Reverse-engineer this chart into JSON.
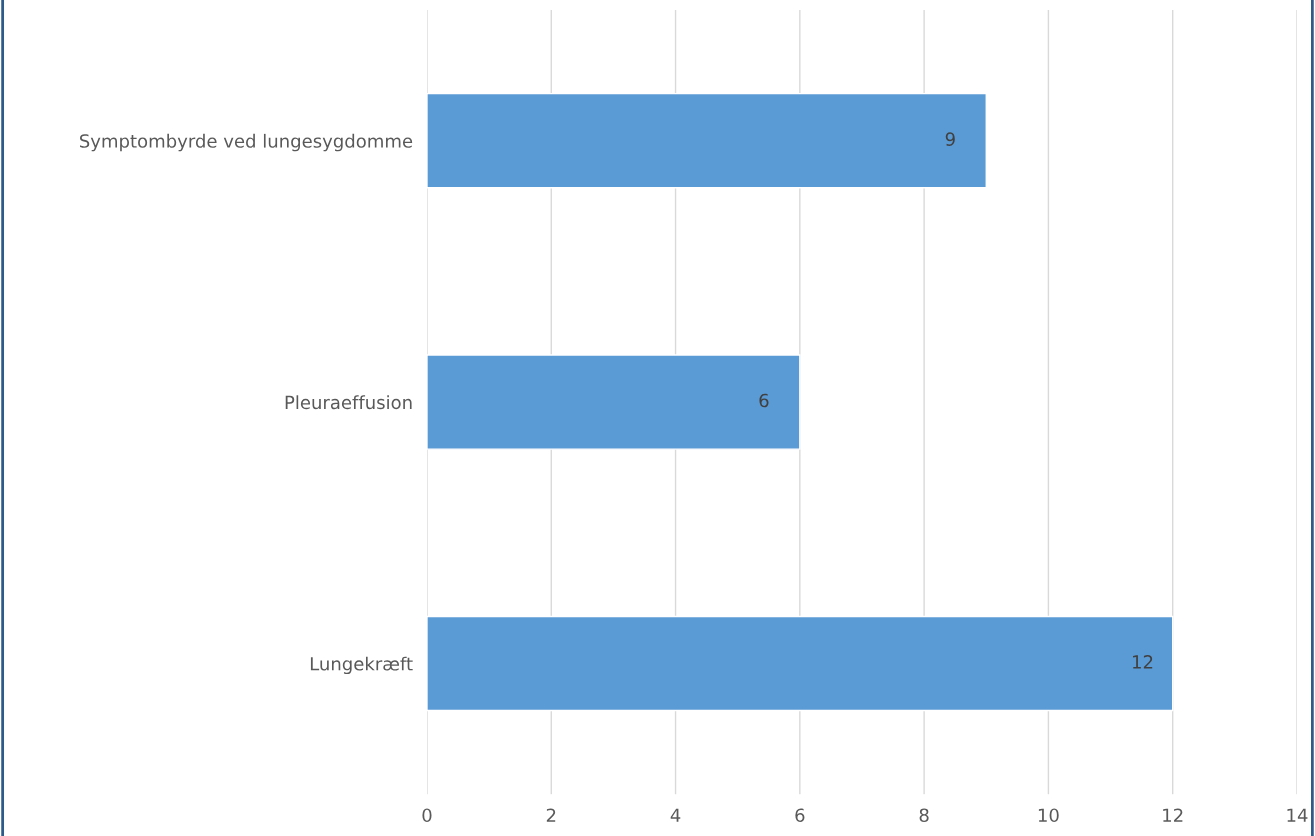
{
  "chart_data": {
    "type": "bar",
    "orientation": "horizontal",
    "categories": [
      "Symptombyrde ved lungesygdomme",
      "Pleuraeffusion",
      "Lungekræft"
    ],
    "values": [
      9,
      6,
      12
    ],
    "color": "#5b9bd5",
    "xlim": [
      0,
      14
    ],
    "xticks": [
      0,
      2,
      4,
      6,
      8,
      10,
      12,
      14
    ],
    "grid": "x",
    "data_labels": true
  }
}
